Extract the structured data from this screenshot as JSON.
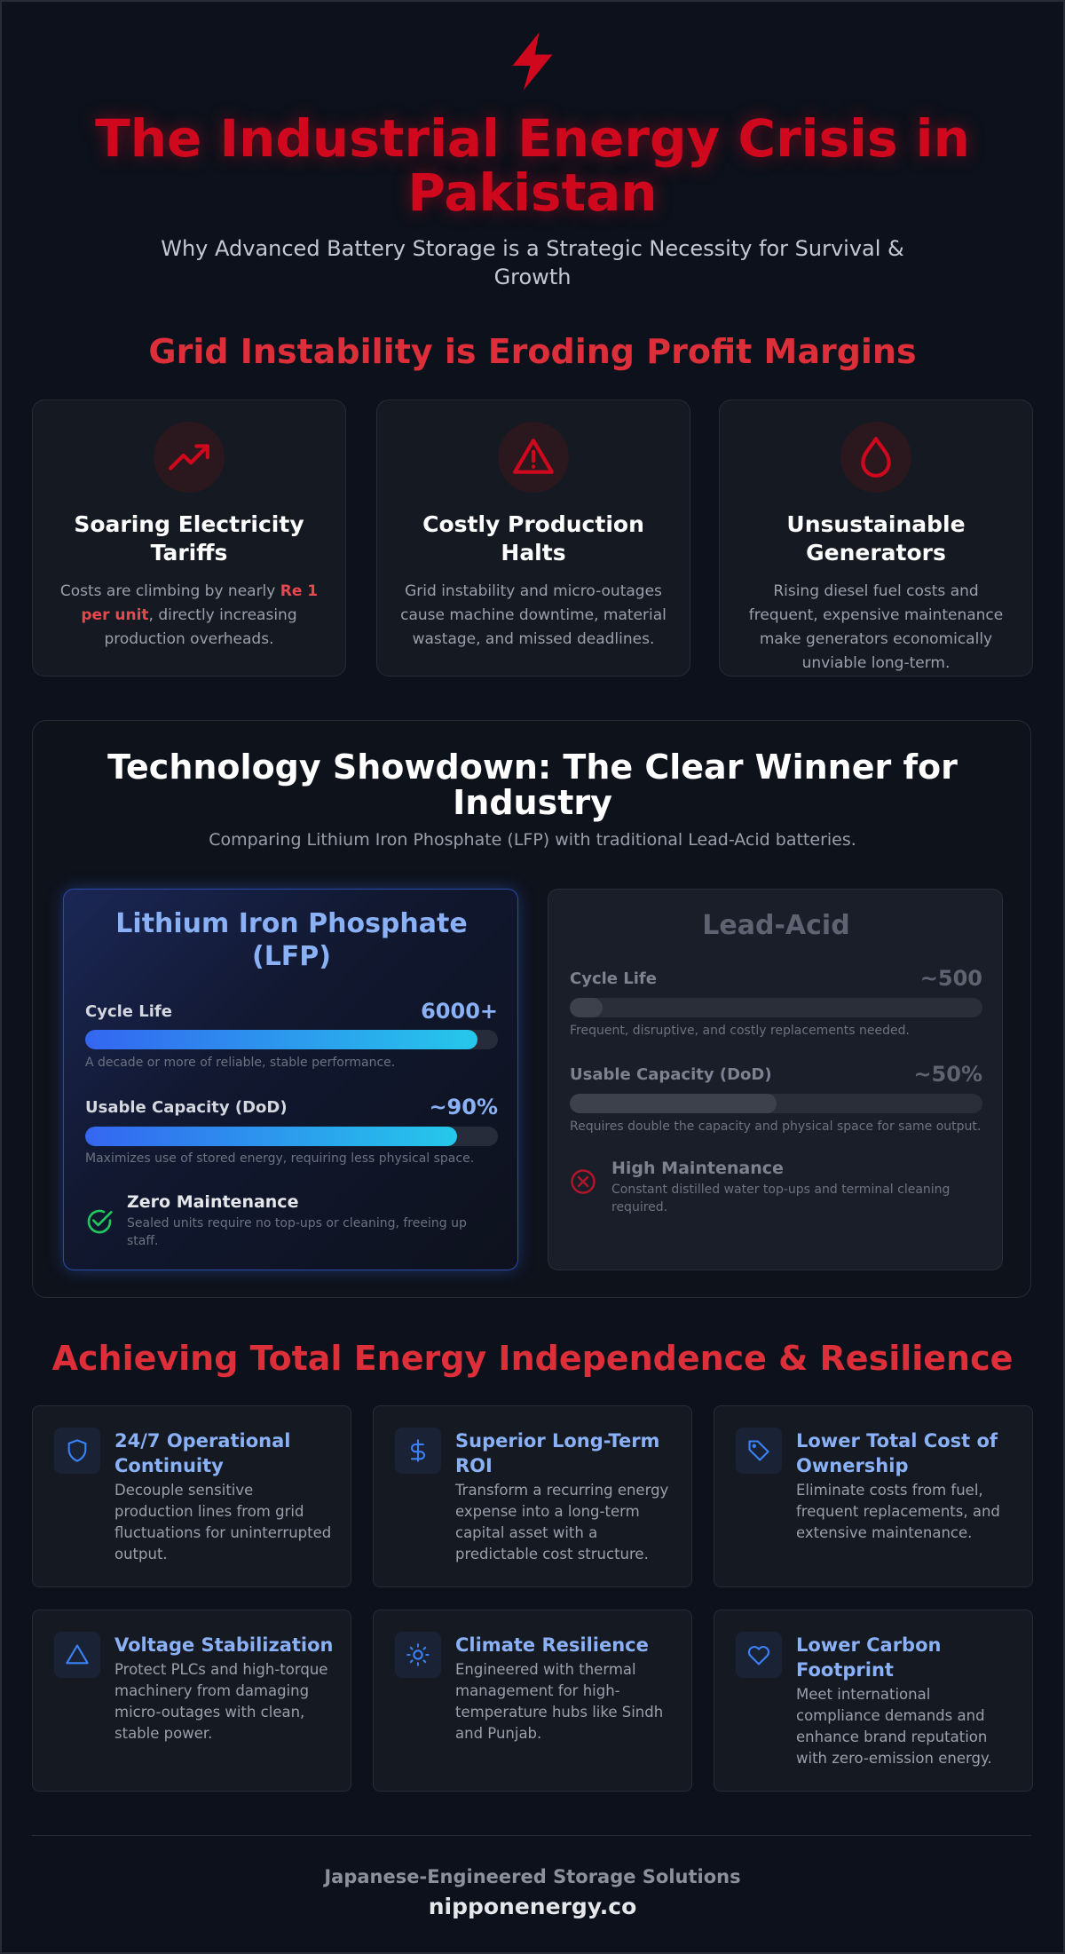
{
  "header": {
    "title": "The Industrial Energy Crisis in Pakistan",
    "subtitle": "Why Advanced Battery Storage is a Strategic Necessity for Survival & Growth"
  },
  "problems": {
    "heading": "Grid Instability is Eroding Profit Margins",
    "cards": [
      {
        "title": "Soaring Electricity Tariffs",
        "text_before": "Costs are climbing by nearly ",
        "highlight": "Re 1 per unit",
        "text_after": ", directly increasing production overheads."
      },
      {
        "title": "Costly Production Halts",
        "text": "Grid instability and micro-outages cause machine downtime, material wastage, and missed deadlines."
      },
      {
        "title": "Unsustainable Generators",
        "text": "Rising diesel fuel costs and frequent, expensive maintenance make generators economically unviable long-term."
      }
    ]
  },
  "showdown": {
    "title": "Technology Showdown: The Clear Winner for Industry",
    "subtitle": "Comparing Lithium Iron Phosphate (LFP) with traditional Lead-Acid batteries.",
    "lfp": {
      "name": "Lithium Iron Phosphate (LFP)",
      "metrics": [
        {
          "label": "Cycle Life",
          "value_label": "6000+",
          "bar_fill": 95,
          "note": "A decade or more of reliable, stable performance."
        },
        {
          "label": "Usable Capacity (DoD)",
          "value_label": "~90%",
          "bar_fill": 90,
          "note": "Maximizes use of stored energy, requiring less physical space."
        }
      ],
      "feature": {
        "title": "Zero Maintenance",
        "text": "Sealed units require no top-ups or cleaning, freeing up staff."
      }
    },
    "lead_acid": {
      "name": "Lead-Acid",
      "metrics": [
        {
          "label": "Cycle Life",
          "value_label": "~500",
          "bar_fill": 8,
          "note": "Frequent, disruptive, and costly replacements needed."
        },
        {
          "label": "Usable Capacity (DoD)",
          "value_label": "~50%",
          "bar_fill": 50,
          "note": "Requires double the capacity and physical space for same output."
        }
      ],
      "feature": {
        "title": "High Maintenance",
        "text": "Constant distilled water top-ups and terminal cleaning required."
      }
    }
  },
  "benefits": {
    "heading": "Achieving Total Energy Independence & Resilience",
    "items": [
      {
        "title": "24/7 Operational Continuity",
        "text": "Decouple sensitive production lines from grid fluctuations for uninterrupted output."
      },
      {
        "title": "Superior Long-Term ROI",
        "text": "Transform a recurring energy expense into a long-term capital asset with a predictable cost structure."
      },
      {
        "title": "Lower Total Cost of Ownership",
        "text": "Eliminate costs from fuel, frequent replacements, and extensive maintenance."
      },
      {
        "title": "Voltage Stabilization",
        "text": "Protect PLCs and high-torque machinery from damaging micro-outages with clean, stable power."
      },
      {
        "title": "Climate Resilience",
        "text": "Engineered with thermal management for high-temperature hubs like Sindh and Punjab."
      },
      {
        "title": "Lower Carbon Footprint",
        "text": "Meet international compliance demands and enhance brand reputation with zero-emission energy."
      }
    ]
  },
  "footer": {
    "tagline": "Japanese-Engineered Storage Solutions",
    "site": "nipponenergy.co"
  }
}
